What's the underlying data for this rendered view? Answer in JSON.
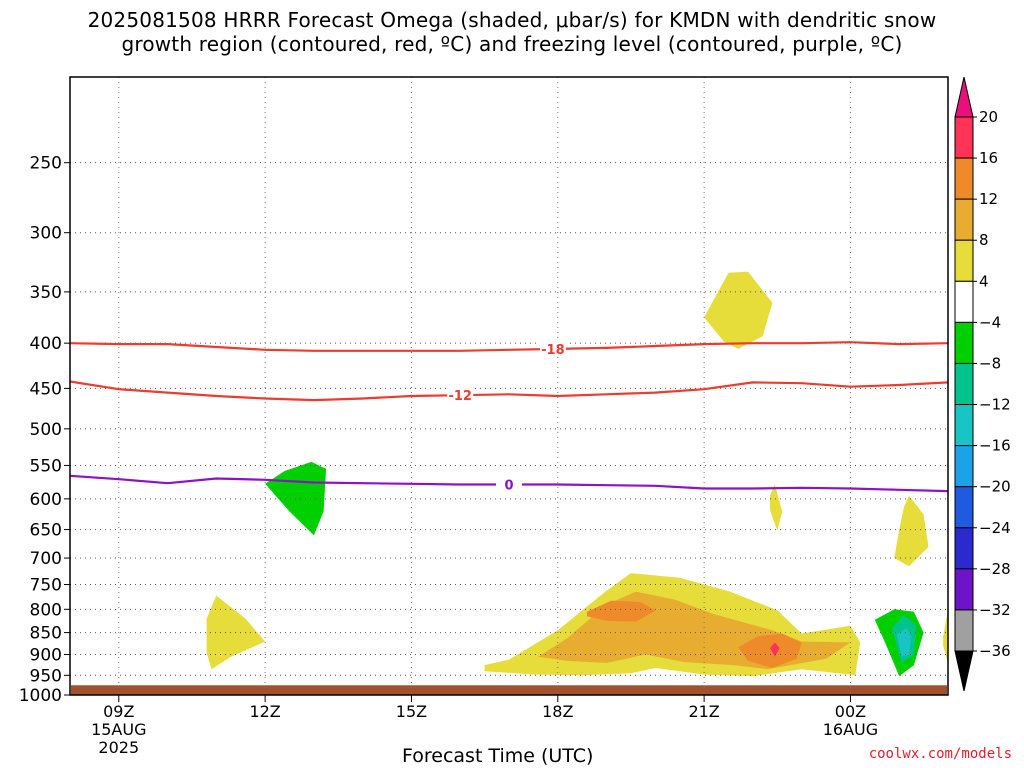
{
  "header": {
    "title_line1": "2025081508 HRRR Forecast Omega (shaded, μbar/s) for KMDN with dendritic snow",
    "title_line2": "growth region (contoured, red, ºC) and freezing level (contoured, purple, ºC)"
  },
  "footer": {
    "xlabel": "Forecast Time (UTC)",
    "credit": "coolwx.com/models"
  },
  "chart_data": {
    "type": "contour",
    "title": "2025081508 HRRR Forecast Omega (shaded, μbar/s) for KMDN with dendritic snow growth region (contoured, red, ºC) and freezing level (contoured, purple, ºC)",
    "xlabel": "Forecast Time (UTC)",
    "ylabel": "",
    "x_ticks": [
      {
        "hour": 9,
        "label": "09Z",
        "sub": [
          "15AUG",
          "2025"
        ]
      },
      {
        "hour": 12,
        "label": "12Z",
        "sub": []
      },
      {
        "hour": 15,
        "label": "15Z",
        "sub": []
      },
      {
        "hour": 18,
        "label": "18Z",
        "sub": []
      },
      {
        "hour": 21,
        "label": "21Z",
        "sub": []
      },
      {
        "hour": 24,
        "label": "00Z",
        "sub": [
          "16AUG"
        ]
      }
    ],
    "xlim_hours": [
      8.0,
      26.0
    ],
    "y_ticks": [
      250,
      300,
      350,
      400,
      450,
      500,
      550,
      600,
      650,
      700,
      750,
      800,
      850,
      900,
      950,
      1000
    ],
    "ylim_hpa": [
      200,
      1000
    ],
    "y_scale": "log",
    "grid": true,
    "ground": {
      "from_hpa": 975,
      "color": "#a0522d"
    },
    "colorbar": {
      "labels": [
        "20",
        "16",
        "12",
        "8",
        "4",
        "−4",
        "−8",
        "−12",
        "−16",
        "−20",
        "−24",
        "−28",
        "−32",
        "−36"
      ],
      "colors": [
        "#ff3355",
        "#ef8a2b",
        "#e8ac30",
        "#e6dd3a",
        "#ffffff",
        "#00d000",
        "#00c48c",
        "#19c4c4",
        "#1aa3e6",
        "#1f5ae0",
        "#2a2acf",
        "#6e14c8",
        "#a310c6",
        "#a0a0a0"
      ],
      "top_color": "#e8107a",
      "bottom_color": "#000000"
    },
    "contours": [
      {
        "label": "-18",
        "color": "#ee3b2e",
        "label_hour": 17.9,
        "points": [
          [
            8.0,
            400
          ],
          [
            9.0,
            401
          ],
          [
            10.0,
            401
          ],
          [
            11.0,
            404
          ],
          [
            12.0,
            407
          ],
          [
            13.0,
            408
          ],
          [
            14.0,
            408
          ],
          [
            15.0,
            408
          ],
          [
            16.0,
            408
          ],
          [
            17.0,
            407
          ],
          [
            18.0,
            406
          ],
          [
            19.0,
            405
          ],
          [
            20.0,
            403
          ],
          [
            21.0,
            401
          ],
          [
            22.0,
            400
          ],
          [
            23.0,
            400
          ],
          [
            24.0,
            399
          ],
          [
            25.0,
            401
          ],
          [
            26.0,
            400
          ]
        ]
      },
      {
        "label": "-12",
        "color": "#ee3b2e",
        "label_hour": 16.0,
        "points": [
          [
            8.0,
            442
          ],
          [
            9.0,
            451
          ],
          [
            10.0,
            455
          ],
          [
            11.0,
            459
          ],
          [
            12.0,
            462
          ],
          [
            13.0,
            464
          ],
          [
            14.0,
            462
          ],
          [
            15.0,
            459
          ],
          [
            16.0,
            458
          ],
          [
            17.0,
            457
          ],
          [
            18.0,
            459
          ],
          [
            19.0,
            457
          ],
          [
            20.0,
            455
          ],
          [
            21.0,
            451
          ],
          [
            22.0,
            443
          ],
          [
            23.0,
            444
          ],
          [
            24.0,
            448
          ],
          [
            25.0,
            446
          ],
          [
            26.0,
            443
          ]
        ]
      },
      {
        "label": "0",
        "color": "#9010c8",
        "label_hour": 17.0,
        "points": [
          [
            8.0,
            565
          ],
          [
            9.0,
            570
          ],
          [
            10.0,
            576
          ],
          [
            11.0,
            569
          ],
          [
            12.0,
            571
          ],
          [
            13.0,
            575
          ],
          [
            14.0,
            576
          ],
          [
            15.0,
            577
          ],
          [
            16.0,
            578
          ],
          [
            17.0,
            578
          ],
          [
            18.0,
            578
          ],
          [
            19.0,
            579
          ],
          [
            20.0,
            580
          ],
          [
            21.0,
            584
          ],
          [
            22.0,
            584
          ],
          [
            23.0,
            583
          ],
          [
            24.0,
            584
          ],
          [
            25.0,
            586
          ],
          [
            26.0,
            588
          ]
        ]
      }
    ],
    "omega_regions": [
      {
        "level": 4,
        "color": "#e6dd3a",
        "points": [
          [
            16.5,
            925
          ],
          [
            17.0,
            912
          ],
          [
            18.0,
            845
          ],
          [
            19.0,
            762
          ],
          [
            19.5,
            728
          ],
          [
            20.5,
            737
          ],
          [
            21.5,
            763
          ],
          [
            22.5,
            802
          ],
          [
            23.0,
            852
          ],
          [
            24.0,
            835
          ],
          [
            24.2,
            872
          ],
          [
            24.1,
            950
          ],
          [
            23.0,
            935
          ],
          [
            22.0,
            952
          ],
          [
            21.0,
            948
          ],
          [
            20.0,
            932
          ],
          [
            19.5,
            945
          ],
          [
            18.5,
            950
          ],
          [
            17.5,
            948
          ],
          [
            16.5,
            940
          ]
        ]
      },
      {
        "level": 8,
        "color": "#e8ac30",
        "points": [
          [
            17.6,
            905
          ],
          [
            18.2,
            862
          ],
          [
            19.0,
            790
          ],
          [
            19.6,
            764
          ],
          [
            20.4,
            780
          ],
          [
            21.2,
            810
          ],
          [
            22.4,
            845
          ],
          [
            23.0,
            870
          ],
          [
            24.0,
            872
          ],
          [
            23.5,
            910
          ],
          [
            22.3,
            935
          ],
          [
            21.6,
            925
          ],
          [
            20.6,
            918
          ],
          [
            19.8,
            900
          ],
          [
            19.0,
            920
          ],
          [
            18.2,
            915
          ]
        ]
      },
      {
        "level": 12,
        "color": "#ef8a2b",
        "points": [
          [
            18.6,
            805
          ],
          [
            19.1,
            782
          ],
          [
            19.7,
            785
          ],
          [
            20.0,
            803
          ],
          [
            19.6,
            826
          ],
          [
            19.0,
            824
          ],
          [
            18.6,
            815
          ]
        ]
      },
      {
        "level": 12,
        "color": "#ef8a2b",
        "points": [
          [
            21.7,
            883
          ],
          [
            22.1,
            858
          ],
          [
            22.6,
            852
          ],
          [
            23.0,
            873
          ],
          [
            22.9,
            910
          ],
          [
            22.4,
            932
          ],
          [
            21.9,
            915
          ]
        ]
      },
      {
        "level": 16,
        "color": "#ff3355",
        "points": [
          [
            22.35,
            885
          ],
          [
            22.45,
            872
          ],
          [
            22.55,
            885
          ],
          [
            22.45,
            905
          ]
        ]
      },
      {
        "level": 4,
        "color": "#e6dd3a",
        "points": [
          [
            10.8,
            820
          ],
          [
            11.0,
            772
          ],
          [
            11.6,
            820
          ],
          [
            12.0,
            870
          ],
          [
            11.3,
            905
          ],
          [
            10.9,
            935
          ],
          [
            10.8,
            895
          ]
        ]
      },
      {
        "level": 4,
        "color": "#e6dd3a",
        "points": [
          [
            21.0,
            374
          ],
          [
            21.5,
            333
          ],
          [
            21.9,
            332
          ],
          [
            22.4,
            360
          ],
          [
            22.2,
            393
          ],
          [
            21.7,
            406
          ],
          [
            21.4,
            398
          ]
        ]
      },
      {
        "level": 4,
        "color": "#e6dd3a",
        "points": [
          [
            22.35,
            595
          ],
          [
            22.45,
            578
          ],
          [
            22.6,
            620
          ],
          [
            22.5,
            652
          ],
          [
            22.35,
            618
          ]
        ]
      },
      {
        "level": 4,
        "color": "#e6dd3a",
        "points": [
          [
            25.0,
            650
          ],
          [
            25.1,
            612
          ],
          [
            25.2,
            595
          ],
          [
            25.5,
            625
          ],
          [
            25.6,
            680
          ],
          [
            25.2,
            715
          ],
          [
            24.9,
            700
          ]
        ]
      },
      {
        "level": 4,
        "color": "#e6dd3a",
        "points": [
          [
            25.9,
            860
          ],
          [
            26.0,
            800
          ],
          [
            26.0,
            920
          ],
          [
            25.9,
            880
          ]
        ]
      },
      {
        "level": -4,
        "color": "#00d000",
        "points": [
          [
            12.0,
            577
          ],
          [
            12.4,
            558
          ],
          [
            12.95,
            545
          ],
          [
            13.25,
            555
          ],
          [
            13.2,
            620
          ],
          [
            13.0,
            660
          ],
          [
            12.5,
            620
          ]
        ]
      },
      {
        "level": -4,
        "color": "#00d000",
        "points": [
          [
            24.5,
            822
          ],
          [
            24.9,
            800
          ],
          [
            25.3,
            805
          ],
          [
            25.5,
            850
          ],
          [
            25.3,
            925
          ],
          [
            25.0,
            952
          ],
          [
            24.7,
            870
          ]
        ]
      },
      {
        "level": -8,
        "color": "#00c48c",
        "points": [
          [
            24.85,
            840
          ],
          [
            25.1,
            812
          ],
          [
            25.35,
            835
          ],
          [
            25.3,
            900
          ],
          [
            25.05,
            920
          ]
        ]
      },
      {
        "level": -12,
        "color": "#19c4c4",
        "points": [
          [
            24.95,
            855
          ],
          [
            25.15,
            840
          ],
          [
            25.25,
            860
          ],
          [
            25.2,
            900
          ],
          [
            25.05,
            905
          ]
        ]
      }
    ]
  }
}
